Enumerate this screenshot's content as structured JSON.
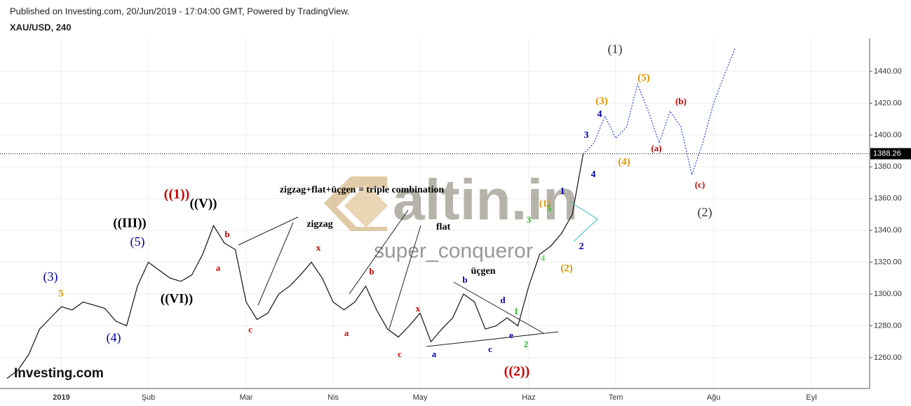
{
  "header": {
    "published": "Published on Investing.com, 20/Jun/2019 - 17:04:00 GMT, Powered by TradingView.",
    "symbol": "XAU/USD, 240"
  },
  "watermark": {
    "brand": "altin.in",
    "author": "super_conqueror",
    "logo": "Investing.com"
  },
  "chart_data": {
    "type": "line",
    "categories": [
      null,
      null,
      null,
      null,
      null,
      "2019",
      null,
      null,
      null,
      null,
      null,
      null,
      null,
      "Şub",
      null,
      null,
      null,
      null,
      null,
      null,
      null,
      null,
      "Mar",
      null,
      null,
      null,
      null,
      null,
      null,
      null,
      "Nis",
      null,
      null,
      null,
      null,
      null,
      null,
      null,
      "May",
      null,
      null,
      null,
      null,
      null,
      null,
      null,
      null,
      null,
      "Haz",
      null,
      null,
      null,
      null,
      null,
      null,
      null,
      "Tem",
      null,
      null,
      null,
      null,
      null,
      null,
      null,
      null,
      "Ağu",
      null,
      null,
      null,
      null,
      null,
      null,
      null,
      null,
      "Eyl",
      null,
      null,
      null,
      null,
      null
    ],
    "series": [
      {
        "color": "#111111",
        "values": [
          1247,
          1252,
          1262,
          1278,
          1285,
          1292,
          1290,
          1295,
          1293,
          1291,
          1283,
          1280,
          1305,
          1320,
          1315,
          1310,
          1308,
          1312,
          1325,
          1343,
          1332,
          1328,
          1295,
          1284,
          1288,
          1300,
          1305,
          1312,
          1320,
          1310,
          1295,
          1290,
          1295,
          1305,
          1290,
          1278,
          1273,
          1280,
          1288,
          1270,
          1278,
          1285,
          1300,
          1295,
          1278,
          1280,
          1285,
          1280,
          1305,
          1325,
          1330,
          1338,
          1350,
          1388,
          null,
          null,
          null,
          null,
          null,
          null,
          null,
          null,
          null,
          null,
          null,
          null,
          null,
          null,
          null,
          null,
          null,
          null,
          null,
          null,
          null,
          null,
          null,
          null,
          null,
          null
        ]
      },
      {
        "color": "#3a55e0",
        "dashed": true,
        "values": [
          null,
          null,
          null,
          null,
          null,
          null,
          null,
          null,
          null,
          null,
          null,
          null,
          null,
          null,
          null,
          null,
          null,
          null,
          null,
          null,
          null,
          null,
          null,
          null,
          null,
          null,
          null,
          null,
          null,
          null,
          null,
          null,
          null,
          null,
          null,
          null,
          null,
          null,
          null,
          null,
          null,
          null,
          null,
          null,
          null,
          null,
          null,
          null,
          null,
          null,
          null,
          null,
          null,
          1388,
          1395,
          1412,
          1398,
          1405,
          1432,
          1415,
          1395,
          1415,
          1405,
          1375,
          1395,
          1420,
          1438,
          1455,
          null,
          null,
          null,
          null,
          null,
          null,
          null,
          null,
          null,
          null,
          null,
          null
        ]
      }
    ],
    "ylim": [
      1240.6,
      1458.5
    ],
    "yticks": [
      {
        "value": 1260,
        "label": "1260.00"
      },
      {
        "value": 1280,
        "label": "1280.00"
      },
      {
        "value": 1300,
        "label": "1300.00"
      },
      {
        "value": 1320,
        "label": "1320.00"
      },
      {
        "value": 1340,
        "label": "1340.00"
      },
      {
        "value": 1360,
        "label": "1360.00"
      },
      {
        "value": 1380,
        "label": "1380.00"
      },
      {
        "value": 1400,
        "label": "1400.00"
      },
      {
        "value": 1420,
        "label": "1420.00"
      },
      {
        "value": 1440,
        "label": "1440.00"
      }
    ],
    "grid": true,
    "last_price": 1388.26,
    "annotations": [
      {
        "text": "(1)",
        "color": "#333333"
      },
      {
        "text": "(5)",
        "color": "#e69500"
      },
      {
        "text": "(3)",
        "color": "#e69500"
      },
      {
        "text": "4",
        "color": "#0000aa"
      },
      {
        "text": "(b)",
        "color": "#cc0000"
      },
      {
        "text": "3",
        "color": "#0000aa"
      },
      {
        "text": "(a)",
        "color": "#cc0000"
      },
      {
        "text": "(4)",
        "color": "#e69500"
      },
      {
        "text": "4",
        "color": "#0000aa"
      },
      {
        "text": "(c)",
        "color": "#cc0000"
      },
      {
        "text": "((1))",
        "color": "#cc0000"
      },
      {
        "text": "zigzag+flat+üçgen = triple combination",
        "color": "#000000"
      },
      {
        "text": "((V))",
        "color": "#000000"
      },
      {
        "text": "1",
        "color": "#0000aa"
      },
      {
        "text": "(1)",
        "color": "#e69500"
      },
      {
        "text": "5",
        "color": "#22bb22"
      },
      {
        "text": "(2)",
        "color": "#333333"
      },
      {
        "text": "((III))",
        "color": "#000000"
      },
      {
        "text": "zigzag",
        "color": "#000000"
      },
      {
        "text": "b",
        "color": "#cc0000"
      },
      {
        "text": "3",
        "color": "#22bb22"
      },
      {
        "text": "flat",
        "color": "#000000"
      },
      {
        "text": "(5)",
        "color": "#0000aa"
      },
      {
        "text": "2",
        "color": "#0000aa"
      },
      {
        "text": "x",
        "color": "#cc0000"
      },
      {
        "text": "4",
        "color": "#66dd66"
      },
      {
        "text": "a",
        "color": "#cc0000"
      },
      {
        "text": "(2)",
        "color": "#e69500"
      },
      {
        "text": "üçgen",
        "color": "#000000"
      },
      {
        "text": "b",
        "color": "#cc0000"
      },
      {
        "text": "(3)",
        "color": "#0000aa"
      },
      {
        "text": "b",
        "color": "#0000aa"
      },
      {
        "text": "((VI))",
        "color": "#000000"
      },
      {
        "text": "5",
        "color": "#e69500"
      },
      {
        "text": "d",
        "color": "#0000aa"
      },
      {
        "text": "x",
        "color": "#cc0000"
      },
      {
        "text": "1",
        "color": "#22bb22"
      },
      {
        "text": "c",
        "color": "#cc0000"
      },
      {
        "text": "a",
        "color": "#cc0000"
      },
      {
        "text": "e",
        "color": "#0000aa"
      },
      {
        "text": "(4)",
        "color": "#0000aa"
      },
      {
        "text": "2",
        "color": "#22bb22"
      },
      {
        "text": "c",
        "color": "#cc0000"
      },
      {
        "text": "a",
        "color": "#0000aa"
      },
      {
        "text": "c",
        "color": "#0000aa"
      },
      {
        "text": "((2))",
        "color": "#cc0000"
      }
    ]
  }
}
